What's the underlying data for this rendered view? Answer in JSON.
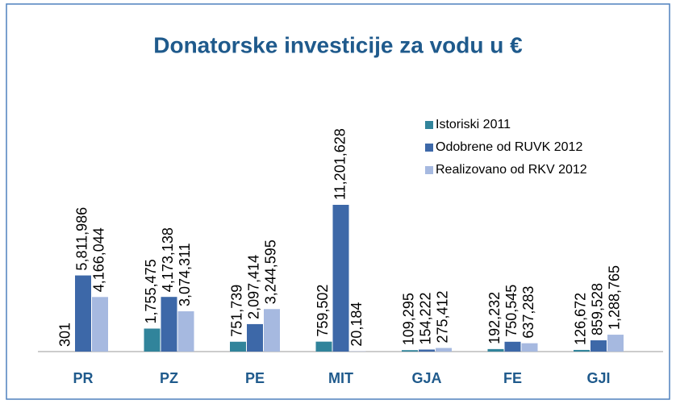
{
  "chart_data": {
    "type": "bar",
    "title": "Donatorske investicije za vodu u €",
    "categories": [
      "PR",
      "PZ",
      "PE",
      "MIT",
      "GJA",
      "FE",
      "GJI"
    ],
    "legend": "right",
    "series": [
      {
        "name": "Istoriski 2011",
        "color": "#31849b",
        "values": [
          301,
          1755475,
          751739,
          759502,
          109295,
          192232,
          126672
        ],
        "value_labels": [
          "301",
          "1,755,475",
          "751,739",
          "759,502",
          "109,295",
          "192,232",
          "126,672"
        ]
      },
      {
        "name": "Odobrene od RUVK 2012",
        "color": "#3d68a8",
        "values": [
          5811986,
          4173138,
          2097414,
          11201628,
          154222,
          750545,
          859528
        ],
        "value_labels": [
          "5,811,986",
          "4,173,138",
          "2,097,414",
          "11,201,628",
          "154,222",
          "750,545",
          "859,528"
        ]
      },
      {
        "name": "Realizovano od RKV 2012",
        "color": "#a6b9e0",
        "values": [
          4166044,
          3074311,
          3244595,
          20184,
          275412,
          637283,
          1288765
        ],
        "value_labels": [
          "4,166,044",
          "3,074,311",
          "3,244,595",
          "20,184",
          "275,412",
          "637,283",
          "1,288,765"
        ]
      }
    ]
  }
}
